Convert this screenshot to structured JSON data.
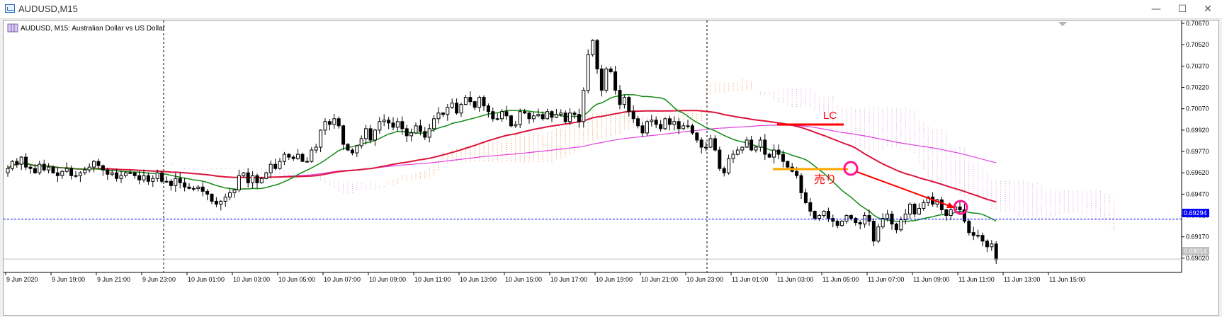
{
  "window": {
    "title": "AUDUSD,M15",
    "minimize_icon": "minimize-icon",
    "maximize_icon": "maximize-icon",
    "close_icon": "close-icon"
  },
  "chart_header": {
    "label": "AUDUSD, M15:  Australian Dollar vs US Dollar",
    "icon": "chart-type-icon"
  },
  "annotations": {
    "lc_label": "LC",
    "sell_label": "売り"
  },
  "price_tags": {
    "current_bid": "0.69294",
    "last_price": "0.69014"
  },
  "colors": {
    "bull": "#ffffff",
    "bear": "#000000",
    "green_ma": "#138a13",
    "red_ma": "#dc143c",
    "magenta_ma": "#e040e0",
    "cloud_orange": "#f08a4b",
    "cloud_pink": "#d8a0d8",
    "lc_line": "#ff0000",
    "entry_line": "#ffa500",
    "arrow": "#ff0000",
    "circle": "#ff1493",
    "bid_line": "#0000ff",
    "bid_tag": "#0000ff"
  },
  "chart_data": {
    "type": "candlestick",
    "symbol": "AUDUSD",
    "timeframe": "M15",
    "ylim": [
      0.6892,
      0.7069
    ],
    "y_ticks": [
      "0.70670",
      "0.70520",
      "0.70370",
      "0.70220",
      "0.70070",
      "0.69920",
      "0.69770",
      "0.69620",
      "0.69470",
      "0.69320",
      "0.69170",
      "0.69020"
    ],
    "x_ticks": [
      "9 Jun 2020",
      "9 Jun 19:00",
      "9 Jun 21:00",
      "9 Jun 23:00",
      "10 Jun 01:00",
      "10 Jun 03:00",
      "10 Jun 05:00",
      "10 Jun 07:00",
      "10 Jun 09:00",
      "10 Jun 11:00",
      "10 Jun 13:00",
      "10 Jun 15:00",
      "10 Jun 17:00",
      "10 Jun 19:00",
      "10 Jun 21:00",
      "10 Jun 23:00",
      "11 Jun 01:00",
      "11 Jun 03:00",
      "11 Jun 05:00",
      "11 Jun 07:00",
      "11 Jun 09:00",
      "11 Jun 11:00",
      "11 Jun 13:00",
      "11 Jun 15:00"
    ],
    "closes": [
      0.6965,
      0.697,
      0.6968,
      0.6973,
      0.6966,
      0.6965,
      0.6962,
      0.6968,
      0.6964,
      0.6966,
      0.6962,
      0.696,
      0.6963,
      0.6965,
      0.696,
      0.696,
      0.6962,
      0.6964,
      0.6966,
      0.697,
      0.6967,
      0.6964,
      0.6961,
      0.6962,
      0.6958,
      0.696,
      0.6962,
      0.6962,
      0.696,
      0.6957,
      0.696,
      0.6956,
      0.6958,
      0.6962,
      0.6956,
      0.6956,
      0.6953,
      0.6958,
      0.6955,
      0.6952,
      0.6951,
      0.6951,
      0.6952,
      0.6949,
      0.6947,
      0.6942,
      0.694,
      0.6942,
      0.6945,
      0.6948,
      0.695,
      0.696,
      0.6962,
      0.6955,
      0.696,
      0.6955,
      0.6958,
      0.6962,
      0.6968,
      0.6965,
      0.697,
      0.6975,
      0.6973,
      0.6972,
      0.6975,
      0.697,
      0.697,
      0.6978,
      0.698,
      0.6992,
      0.6998,
      0.6996,
      0.7,
      0.6995,
      0.6982,
      0.6978,
      0.6976,
      0.6981,
      0.6986,
      0.6993,
      0.6985,
      0.6992,
      0.6998,
      0.6999,
      0.6997,
      0.6994,
      0.6998,
      0.6993,
      0.6988,
      0.699,
      0.6995,
      0.6991,
      0.6987,
      0.6993,
      0.7,
      0.7004,
      0.7003,
      0.7008,
      0.7011,
      0.7004,
      0.701,
      0.7015,
      0.7012,
      0.7008,
      0.7015,
      0.7009,
      0.7005,
      0.7,
      0.7,
      0.7005,
      0.7002,
      0.6995,
      0.6996,
      0.7005,
      0.7004,
      0.7,
      0.7002,
      0.7003,
      0.7,
      0.7005,
      0.7001,
      0.7003,
      0.7004,
      0.6998,
      0.7004,
      0.7003,
      0.6998,
      0.702,
      0.7045,
      0.7055,
      0.7035,
      0.702,
      0.7035,
      0.7033,
      0.702,
      0.701,
      0.7015,
      0.7005,
      0.7,
      0.6995,
      0.699,
      0.6998,
      0.6999,
      0.6996,
      0.6993,
      0.7,
      0.6996,
      0.6998,
      0.6993,
      0.6995,
      0.6995,
      0.699,
      0.6985,
      0.698,
      0.698,
      0.6986,
      0.6978,
      0.6965,
      0.6962,
      0.6972,
      0.6975,
      0.6978,
      0.698,
      0.6985,
      0.6978,
      0.698,
      0.6985,
      0.6975,
      0.6973,
      0.6978,
      0.6975,
      0.697,
      0.6966,
      0.6963,
      0.696,
      0.6948,
      0.6941,
      0.6935,
      0.693,
      0.6932,
      0.6935,
      0.693,
      0.6928,
      0.6925,
      0.6928,
      0.6932,
      0.693,
      0.6927,
      0.6926,
      0.6932,
      0.6928,
      0.6914,
      0.6924,
      0.693,
      0.6933,
      0.6926,
      0.6922,
      0.6929,
      0.6933,
      0.694,
      0.6933,
      0.6937,
      0.6941,
      0.6945,
      0.694,
      0.6943,
      0.6936,
      0.6932,
      0.6936,
      0.6938,
      0.6936,
      0.6928,
      0.692,
      0.6918,
      0.6918,
      0.6914,
      0.691,
      0.6912,
      0.6901
    ]
  }
}
